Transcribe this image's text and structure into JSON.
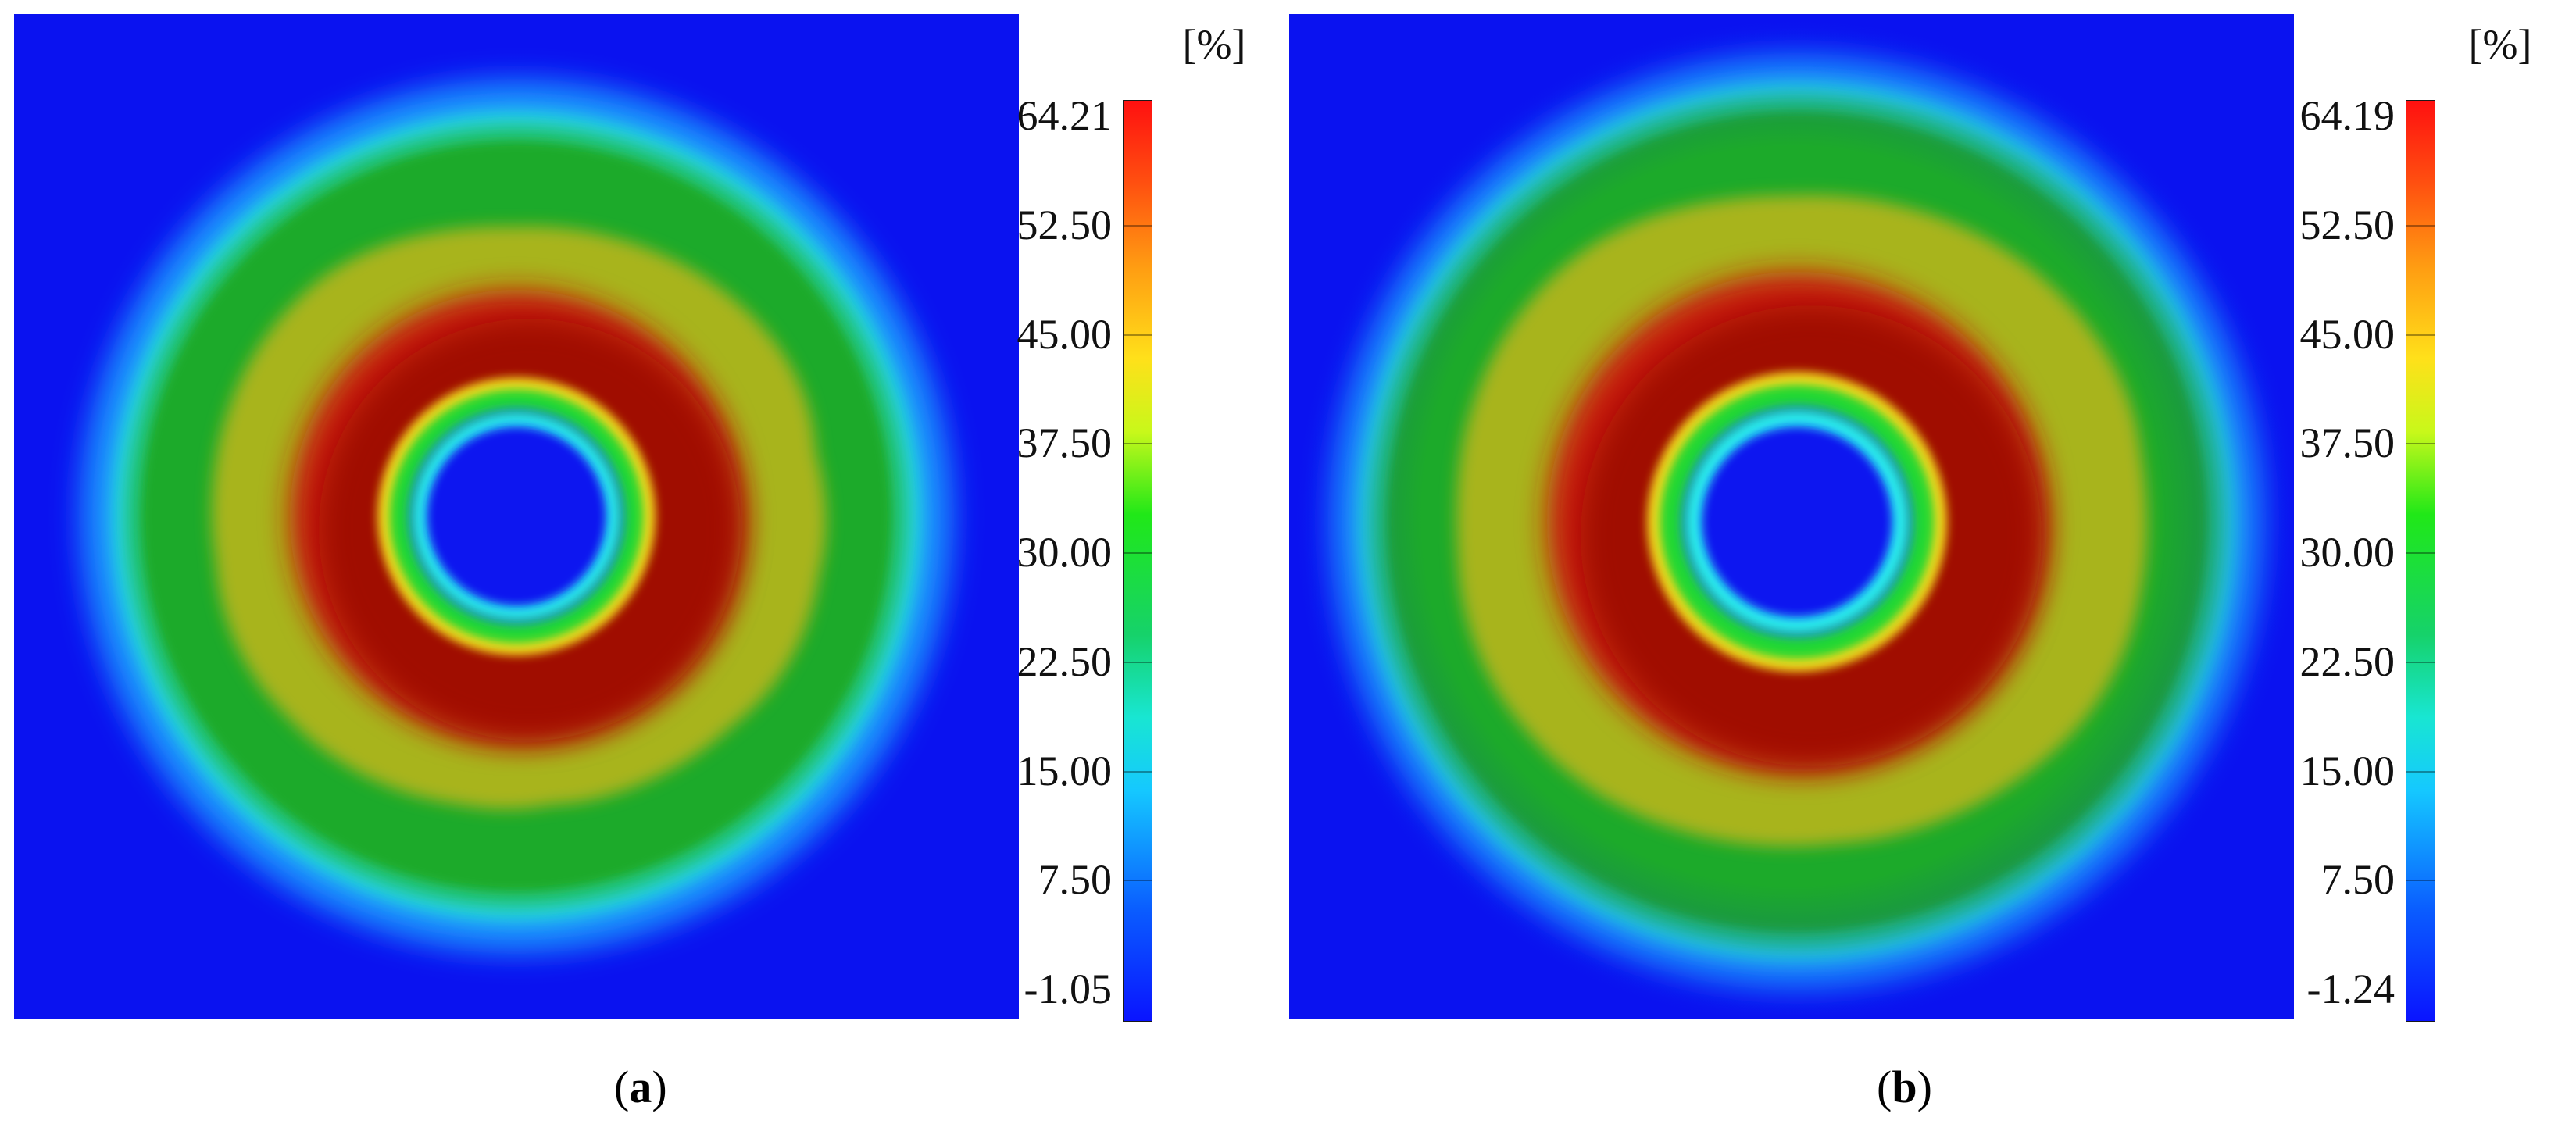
{
  "chart_data": [
    {
      "type": "heatmap",
      "panel_label": "a",
      "colorbar": {
        "unit": "[%]",
        "ticks": [
          "64.21",
          "52.50",
          "45.00",
          "37.50",
          "30.00",
          "22.50",
          "15.00",
          "7.50",
          "-1.05"
        ],
        "min": -1.05,
        "max": 64.21
      }
    },
    {
      "type": "heatmap",
      "panel_label": "b",
      "colorbar": {
        "unit": "[%]",
        "ticks": [
          "64.19",
          "52.50",
          "45.00",
          "37.50",
          "30.00",
          "22.50",
          "15.00",
          "7.50",
          "-1.24"
        ],
        "min": -1.24,
        "max": 64.19
      }
    }
  ],
  "colors": {
    "background_blue": "#0a12f0",
    "peak_red": "#c81008",
    "ring_cyan": "#22e0d8",
    "field_green": "#1fb01f"
  }
}
